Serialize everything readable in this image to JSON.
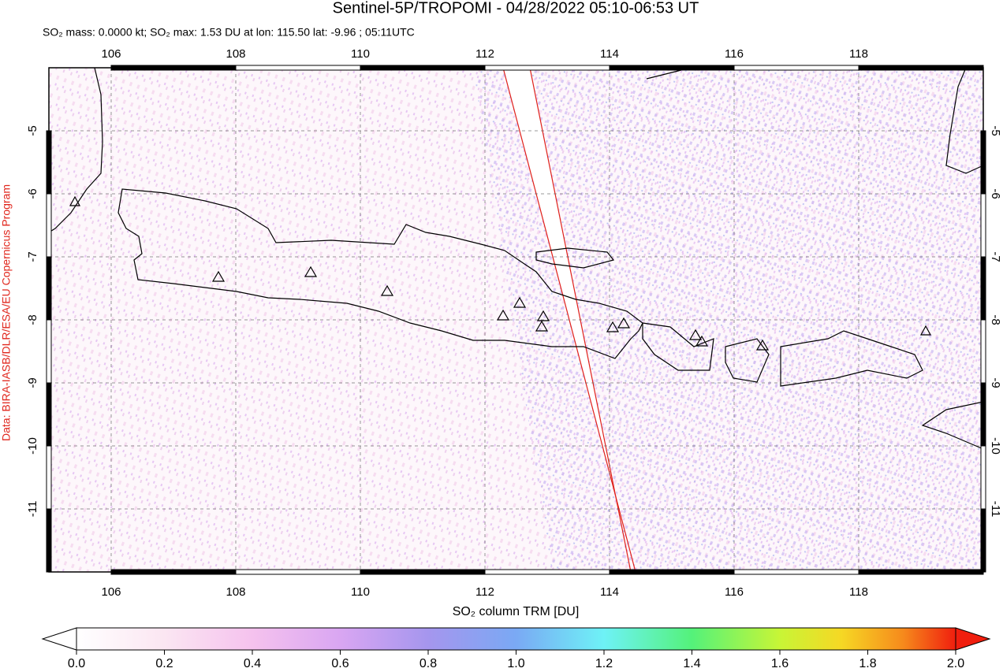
{
  "title": "Sentinel-5P/TROPOMI - 04/28/2022 05:10-06:53 UT",
  "subtitle": "SO₂ mass: 0.0000 kt; SO₂ max: 1.53 DU at lon: 115.50 lat: -9.96 ; 05:11UTC",
  "credit": "Data: BIRA-IASB/DLR/ESA/EU Copernicus Program",
  "map": {
    "lonlim": [
      105,
      120
    ],
    "latlim": [
      -12,
      -4
    ],
    "lon_ticks": [
      106,
      108,
      110,
      112,
      114,
      116,
      118
    ],
    "lat_ticks": [
      -5,
      -6,
      -7,
      -8,
      -9,
      -10,
      -11
    ]
  },
  "colorbar": {
    "label": "SO₂ column TRM [DU]",
    "lim": [
      0,
      2
    ],
    "ticks": [
      {
        "value": 0,
        "label": "0.0"
      },
      {
        "value": 0.2,
        "label": "0.2"
      },
      {
        "value": 0.4,
        "label": "0.4"
      },
      {
        "value": 0.6,
        "label": "0.6"
      },
      {
        "value": 0.8,
        "label": "0.8"
      },
      {
        "value": 1,
        "label": "1.0"
      },
      {
        "value": 1.2,
        "label": "1.2"
      },
      {
        "value": 1.4,
        "label": "1.4"
      },
      {
        "value": 1.6,
        "label": "1.6"
      },
      {
        "value": 1.8,
        "label": "1.8"
      },
      {
        "value": 2,
        "label": "2.0"
      }
    ]
  }
}
